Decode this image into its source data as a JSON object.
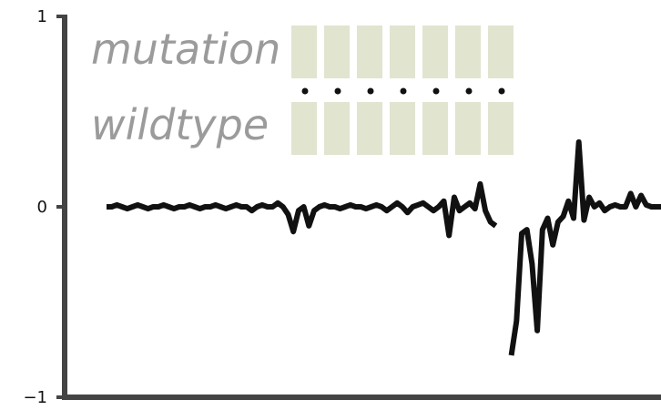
{
  "chart_data": {
    "type": "line",
    "title": "",
    "xlabel": "",
    "ylabel": "",
    "ylim": [
      -1,
      1
    ],
    "yticks": [
      {
        "value": 1,
        "label": "1"
      },
      {
        "value": 0,
        "label": "0"
      },
      {
        "value": -1,
        "label": "−1"
      }
    ],
    "grid": false,
    "legend": {
      "top_label": "mutation",
      "bottom_label": "wildtype",
      "block_count": 7,
      "block_color": "#e1e4cf",
      "text_color": "#9b9b9b"
    },
    "line_color": "#111111",
    "series": [
      {
        "segments": [
          [
            [
              0,
              0.0
            ],
            [
              1,
              0.0
            ],
            [
              2,
              0.01
            ],
            [
              3,
              0.0
            ],
            [
              4,
              -0.01
            ],
            [
              5,
              0.0
            ],
            [
              6,
              0.01
            ],
            [
              7,
              0.0
            ],
            [
              8,
              -0.01
            ],
            [
              9,
              0.0
            ],
            [
              10,
              0.0
            ],
            [
              11,
              0.01
            ],
            [
              12,
              0.0
            ],
            [
              13,
              -0.01
            ],
            [
              14,
              0.0
            ],
            [
              15,
              0.0
            ],
            [
              16,
              0.01
            ],
            [
              17,
              0.0
            ],
            [
              18,
              -0.01
            ],
            [
              19,
              0.0
            ],
            [
              20,
              0.0
            ],
            [
              21,
              0.01
            ],
            [
              22,
              0.0
            ],
            [
              23,
              -0.01
            ],
            [
              24,
              0.0
            ],
            [
              25,
              0.01
            ],
            [
              26,
              0.0
            ],
            [
              27,
              0.0
            ],
            [
              28,
              -0.02
            ],
            [
              29,
              0.0
            ],
            [
              30,
              0.01
            ],
            [
              31,
              0.0
            ],
            [
              32,
              0.0
            ],
            [
              33,
              0.02
            ],
            [
              34,
              0.0
            ],
            [
              35,
              -0.04
            ],
            [
              36,
              -0.13
            ],
            [
              37,
              -0.02
            ],
            [
              38,
              0.0
            ],
            [
              39,
              -0.1
            ],
            [
              40,
              -0.02
            ],
            [
              41,
              0.0
            ],
            [
              42,
              0.01
            ],
            [
              43,
              0.0
            ],
            [
              44,
              0.0
            ],
            [
              45,
              -0.01
            ],
            [
              46,
              0.0
            ],
            [
              47,
              0.01
            ],
            [
              48,
              0.0
            ],
            [
              49,
              0.0
            ],
            [
              50,
              -0.01
            ],
            [
              51,
              0.0
            ],
            [
              52,
              0.01
            ],
            [
              53,
              0.0
            ],
            [
              54,
              -0.02
            ],
            [
              55,
              0.0
            ],
            [
              56,
              0.02
            ],
            [
              57,
              0.0
            ],
            [
              58,
              -0.03
            ],
            [
              59,
              0.0
            ],
            [
              60,
              0.01
            ],
            [
              61,
              0.02
            ],
            [
              62,
              0.0
            ],
            [
              63,
              -0.02
            ],
            [
              64,
              0.0
            ],
            [
              65,
              0.03
            ],
            [
              66,
              -0.15
            ],
            [
              67,
              0.05
            ],
            [
              68,
              -0.02
            ],
            [
              69,
              0.0
            ],
            [
              70,
              0.02
            ],
            [
              71,
              -0.01
            ],
            [
              72,
              0.12
            ],
            [
              73,
              -0.02
            ],
            [
              74,
              -0.08
            ],
            [
              75,
              -0.1
            ]
          ],
          [
            [
              78,
              -0.78
            ],
            [
              79,
              -0.6
            ],
            [
              80,
              -0.14
            ],
            [
              81,
              -0.12
            ],
            [
              82,
              -0.3
            ],
            [
              83,
              -0.65
            ],
            [
              84,
              -0.12
            ],
            [
              85,
              -0.06
            ],
            [
              86,
              -0.2
            ],
            [
              87,
              -0.08
            ],
            [
              88,
              -0.05
            ],
            [
              89,
              0.03
            ],
            [
              90,
              -0.06
            ],
            [
              91,
              0.34
            ],
            [
              92,
              -0.07
            ],
            [
              93,
              0.05
            ],
            [
              94,
              0.0
            ],
            [
              95,
              0.02
            ],
            [
              96,
              -0.02
            ],
            [
              97,
              0.0
            ],
            [
              98,
              0.01
            ],
            [
              99,
              0.0
            ],
            [
              100,
              0.0
            ],
            [
              101,
              0.07
            ],
            [
              102,
              0.0
            ],
            [
              103,
              0.06
            ],
            [
              104,
              0.01
            ],
            [
              105,
              0.0
            ],
            [
              106,
              0.0
            ],
            [
              107,
              0.0
            ],
            [
              108,
              0.0
            ]
          ]
        ]
      }
    ]
  }
}
